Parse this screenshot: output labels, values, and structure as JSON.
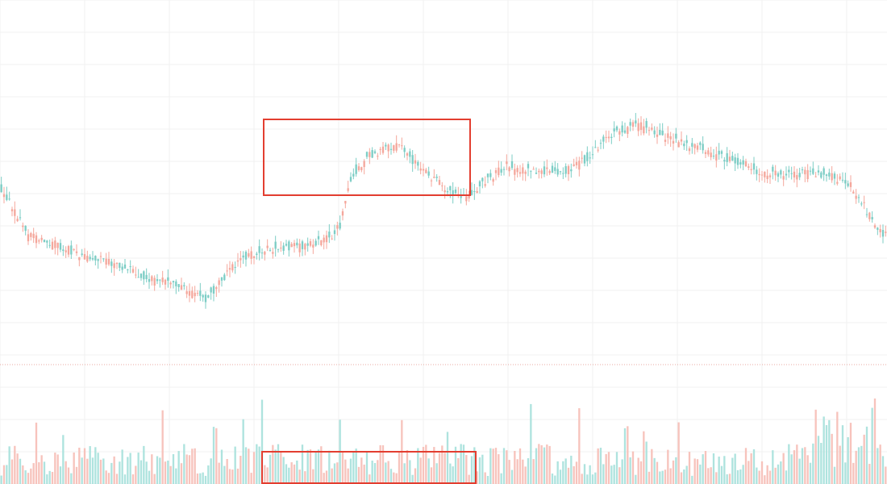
{
  "chart_data": {
    "type": "candlestick",
    "grid": true,
    "price_axis": {
      "ylim": [
        0,
        600
      ]
    },
    "x_count": 330,
    "reference_line": {
      "value": 452,
      "style": "dotted",
      "color": "#e8a9a0"
    },
    "keypoints": [
      [
        0,
        235
      ],
      [
        4,
        255
      ],
      [
        10,
        292
      ],
      [
        18,
        300
      ],
      [
        25,
        310
      ],
      [
        32,
        318
      ],
      [
        40,
        325
      ],
      [
        48,
        335
      ],
      [
        55,
        345
      ],
      [
        62,
        350
      ],
      [
        70,
        360
      ],
      [
        76,
        372
      ],
      [
        80,
        355
      ],
      [
        86,
        330
      ],
      [
        92,
        315
      ],
      [
        100,
        308
      ],
      [
        108,
        306
      ],
      [
        114,
        305
      ],
      [
        118,
        300
      ],
      [
        122,
        295
      ],
      [
        126,
        280
      ],
      [
        130,
        220
      ],
      [
        136,
        195
      ],
      [
        142,
        185
      ],
      [
        148,
        180
      ],
      [
        152,
        195
      ],
      [
        156,
        210
      ],
      [
        160,
        220
      ],
      [
        164,
        230
      ],
      [
        168,
        238
      ],
      [
        172,
        245
      ],
      [
        176,
        235
      ],
      [
        180,
        225
      ],
      [
        184,
        215
      ],
      [
        188,
        205
      ],
      [
        192,
        210
      ],
      [
        196,
        210
      ],
      [
        200,
        212
      ],
      [
        204,
        212
      ],
      [
        208,
        212
      ],
      [
        212,
        210
      ],
      [
        216,
        200
      ],
      [
        220,
        192
      ],
      [
        224,
        175
      ],
      [
        228,
        165
      ],
      [
        232,
        160
      ],
      [
        236,
        155
      ],
      [
        240,
        158
      ],
      [
        244,
        165
      ],
      [
        248,
        170
      ],
      [
        252,
        175
      ],
      [
        256,
        180
      ],
      [
        260,
        183
      ],
      [
        264,
        188
      ],
      [
        268,
        195
      ],
      [
        272,
        198
      ],
      [
        276,
        203
      ],
      [
        280,
        210
      ],
      [
        284,
        214
      ],
      [
        288,
        214
      ],
      [
        292,
        215
      ],
      [
        296,
        215
      ],
      [
        300,
        215
      ],
      [
        304,
        216
      ],
      [
        308,
        217
      ],
      [
        312,
        222
      ],
      [
        316,
        230
      ],
      [
        320,
        248
      ],
      [
        324,
        275
      ],
      [
        328,
        290
      ]
    ],
    "volume_axis": {
      "ylim": [
        0,
        200
      ]
    },
    "colors": {
      "up": "#7ccdc5",
      "down": "#f4a79c",
      "volume_up": "#aee3de",
      "volume_down": "#f7c3bc",
      "grid": "#f0f0f0"
    }
  },
  "annotations": [
    {
      "label": "",
      "kind": "box",
      "color": "#e33e30"
    },
    {
      "label": "",
      "kind": "box",
      "color": "#e33e30"
    }
  ]
}
